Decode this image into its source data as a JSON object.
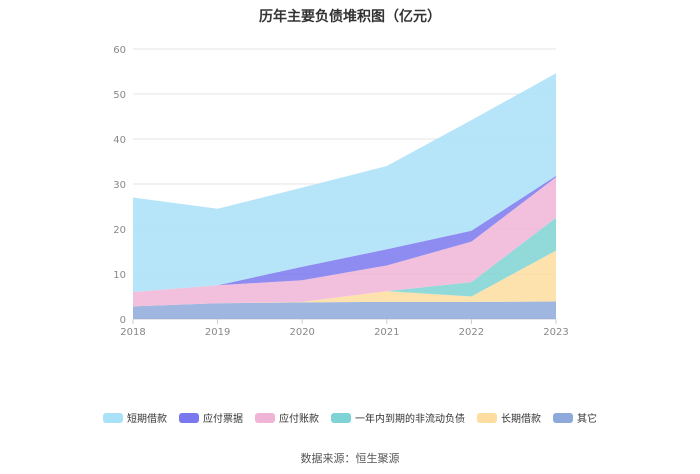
{
  "chart_data": {
    "type": "area",
    "stacked": true,
    "title": "历年主要负债堆积图（亿元）",
    "x": [
      "2018",
      "2019",
      "2020",
      "2021",
      "2022",
      "2023"
    ],
    "ylim": [
      0,
      60
    ],
    "yticks": [
      0,
      10,
      20,
      30,
      40,
      50,
      60
    ],
    "grid": true,
    "legend_position": "bottom",
    "series": [
      {
        "name": "其它",
        "color": "#8eaadb",
        "values": [
          2.8,
          3.5,
          3.7,
          3.8,
          3.8,
          3.9
        ]
      },
      {
        "name": "长期借款",
        "color": "#fddda0",
        "values": [
          0,
          0,
          0.1,
          2.4,
          1.2,
          11.3
        ]
      },
      {
        "name": "一年内到期的非流动负债",
        "color": "#7fd3d4",
        "values": [
          0,
          0,
          0,
          0,
          3.2,
          7.3
        ]
      },
      {
        "name": "应付账款",
        "color": "#f0b5d6",
        "values": [
          3.2,
          4.0,
          4.8,
          5.7,
          9.0,
          9.0
        ]
      },
      {
        "name": "应付票据",
        "color": "#7a78ee",
        "values": [
          0,
          0,
          3.0,
          3.6,
          2.4,
          0.3
        ]
      },
      {
        "name": "短期借款",
        "color": "#a9e1f8",
        "values": [
          21.0,
          17.0,
          17.6,
          18.5,
          24.6,
          22.8
        ]
      }
    ]
  },
  "legend_order": [
    "短期借款",
    "应付票据",
    "应付账款",
    "一年内到期的非流动负债",
    "长期借款",
    "其它"
  ],
  "source_text": "数据来源：恒生聚源"
}
